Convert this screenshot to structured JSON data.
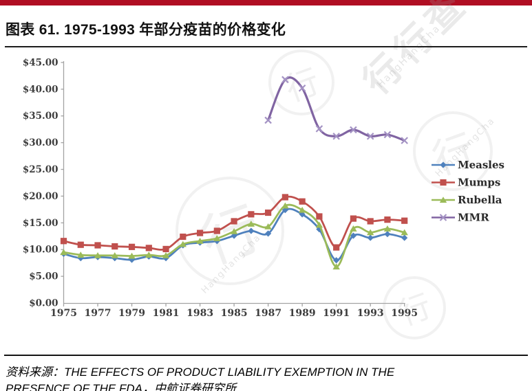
{
  "page": {
    "accent_color": "#B00E23"
  },
  "header": {
    "title": "图表 61. 1975-1993 年部分疫苗的价格变化"
  },
  "watermark": {
    "brand_cn": "行行查",
    "brand_en": "HangHangCha",
    "circle_glyph": "行"
  },
  "chart_data": {
    "type": "line",
    "title": "",
    "xlabel": "",
    "ylabel": "",
    "x": [
      1975,
      1976,
      1977,
      1978,
      1979,
      1980,
      1981,
      1982,
      1983,
      1984,
      1985,
      1986,
      1987,
      1988,
      1989,
      1990,
      1991,
      1992,
      1993,
      1994,
      1995
    ],
    "x_tick_labels": [
      "1975",
      "1977",
      "1979",
      "1981",
      "1983",
      "1985",
      "1987",
      "1989",
      "1991",
      "1993",
      "1995"
    ],
    "y_tick_labels": [
      "$0.00",
      "$5.00",
      "$10.00",
      "$15.00",
      "$20.00",
      "$25.00",
      "$30.00",
      "$35.00",
      "$40.00",
      "$45.00"
    ],
    "ylim": [
      0,
      45
    ],
    "grid": false,
    "legend_position": "right",
    "axis_color": "#a3a3a3",
    "tick_label_color": "#3d3d3d",
    "series": [
      {
        "name": "Measles",
        "color": "#4F81BD",
        "marker": "diamond",
        "marker_color": "#4F81BD",
        "values": [
          9.2,
          8.4,
          8.6,
          8.4,
          8.1,
          8.7,
          8.4,
          10.8,
          11.3,
          11.6,
          12.6,
          13.5,
          13.0,
          17.4,
          16.6,
          13.8,
          8.0,
          12.6,
          12.2,
          12.9,
          12.2
        ]
      },
      {
        "name": "Mumps",
        "color": "#C0504D",
        "marker": "square",
        "marker_color": "#C0504D",
        "values": [
          11.6,
          10.9,
          10.8,
          10.6,
          10.5,
          10.3,
          10.1,
          12.4,
          13.1,
          13.5,
          15.3,
          16.6,
          16.9,
          19.8,
          19.0,
          16.2,
          10.4,
          15.8,
          15.3,
          15.6,
          15.4
        ]
      },
      {
        "name": "Rubella",
        "color": "#9BBB59",
        "marker": "triangle",
        "marker_color": "#9BBB59",
        "values": [
          9.5,
          9.0,
          8.9,
          8.9,
          8.8,
          9.0,
          8.9,
          11.0,
          11.6,
          12.1,
          13.4,
          14.8,
          14.3,
          18.2,
          17.4,
          14.6,
          6.8,
          13.9,
          13.2,
          13.9,
          13.2
        ]
      },
      {
        "name": "MMR",
        "color": "#8064A2",
        "marker": "x",
        "marker_color": "#A493C4",
        "values": [
          null,
          null,
          null,
          null,
          null,
          null,
          null,
          null,
          null,
          null,
          null,
          null,
          34.2,
          41.8,
          40.2,
          32.6,
          31.2,
          32.4,
          31.2,
          31.5,
          30.4
        ]
      }
    ]
  },
  "footer": {
    "source_label": "资料来源：",
    "source_text_line1": "THE EFFECTS OF PRODUCT LIABILITY EXEMPTION IN THE",
    "source_text_line2": "PRESENCE OF THE FDA，中航证券研究所"
  }
}
